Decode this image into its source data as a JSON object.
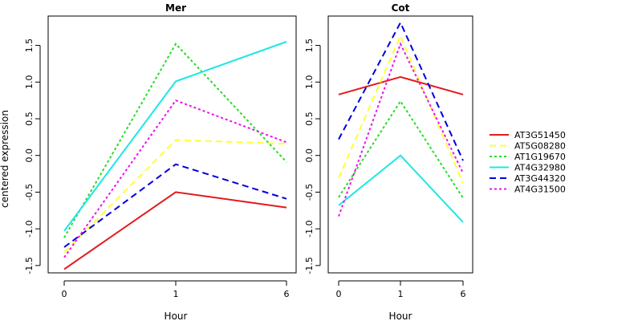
{
  "chart_data": {
    "type": "line",
    "ylabel": "centered expression",
    "x_ticks": [
      "0",
      "1",
      "6"
    ],
    "legend_position": "right",
    "legend": [
      {
        "name": "AT3G51450",
        "color": "#e31a1c",
        "dash": "solid"
      },
      {
        "name": "AT5G08280",
        "color": "#ffff33",
        "dash": "dashed"
      },
      {
        "name": "AT1G19670",
        "color": "#22dd22",
        "dash": "dotted"
      },
      {
        "name": "AT4G32980",
        "color": "#1ee6e6",
        "dash": "solid"
      },
      {
        "name": "AT3G44320",
        "color": "#0000dd",
        "dash": "dashed"
      },
      {
        "name": "AT4G31500",
        "color": "#ee11ee",
        "dash": "dotted"
      }
    ],
    "panels": [
      {
        "title": "Mer",
        "xlabel": "Hour",
        "ylim": [
          -1.6,
          1.9
        ],
        "y_ticks": [
          "-1.5",
          "-1.0",
          "-0.5",
          "0.0",
          "0.5",
          "1.0",
          "1.5"
        ],
        "series": [
          {
            "values": [
              -1.55,
              -0.5,
              -0.71
            ]
          },
          {
            "values": [
              -1.32,
              0.21,
              0.16
            ]
          },
          {
            "values": [
              -1.12,
              1.52,
              -0.09
            ]
          },
          {
            "values": [
              -1.03,
              1.01,
              1.55
            ]
          },
          {
            "values": [
              -1.25,
              -0.12,
              -0.59
            ]
          },
          {
            "values": [
              -1.39,
              0.75,
              0.18
            ]
          }
        ]
      },
      {
        "title": "Cot",
        "xlabel": "Hour",
        "ylim": [
          -1.6,
          1.9
        ],
        "y_ticks": [
          "-1.5",
          "-1.0",
          "-0.5",
          "0.0",
          "0.5",
          "1.0",
          "1.5"
        ],
        "series": [
          {
            "values": [
              0.83,
              1.07,
              0.83
            ]
          },
          {
            "values": [
              -0.31,
              1.63,
              -0.38
            ]
          },
          {
            "values": [
              -0.57,
              0.74,
              -0.58
            ]
          },
          {
            "values": [
              -0.68,
              0.0,
              -0.91
            ]
          },
          {
            "values": [
              0.22,
              1.81,
              -0.07
            ]
          },
          {
            "values": [
              -0.83,
              1.52,
              -0.24
            ]
          }
        ]
      }
    ]
  }
}
